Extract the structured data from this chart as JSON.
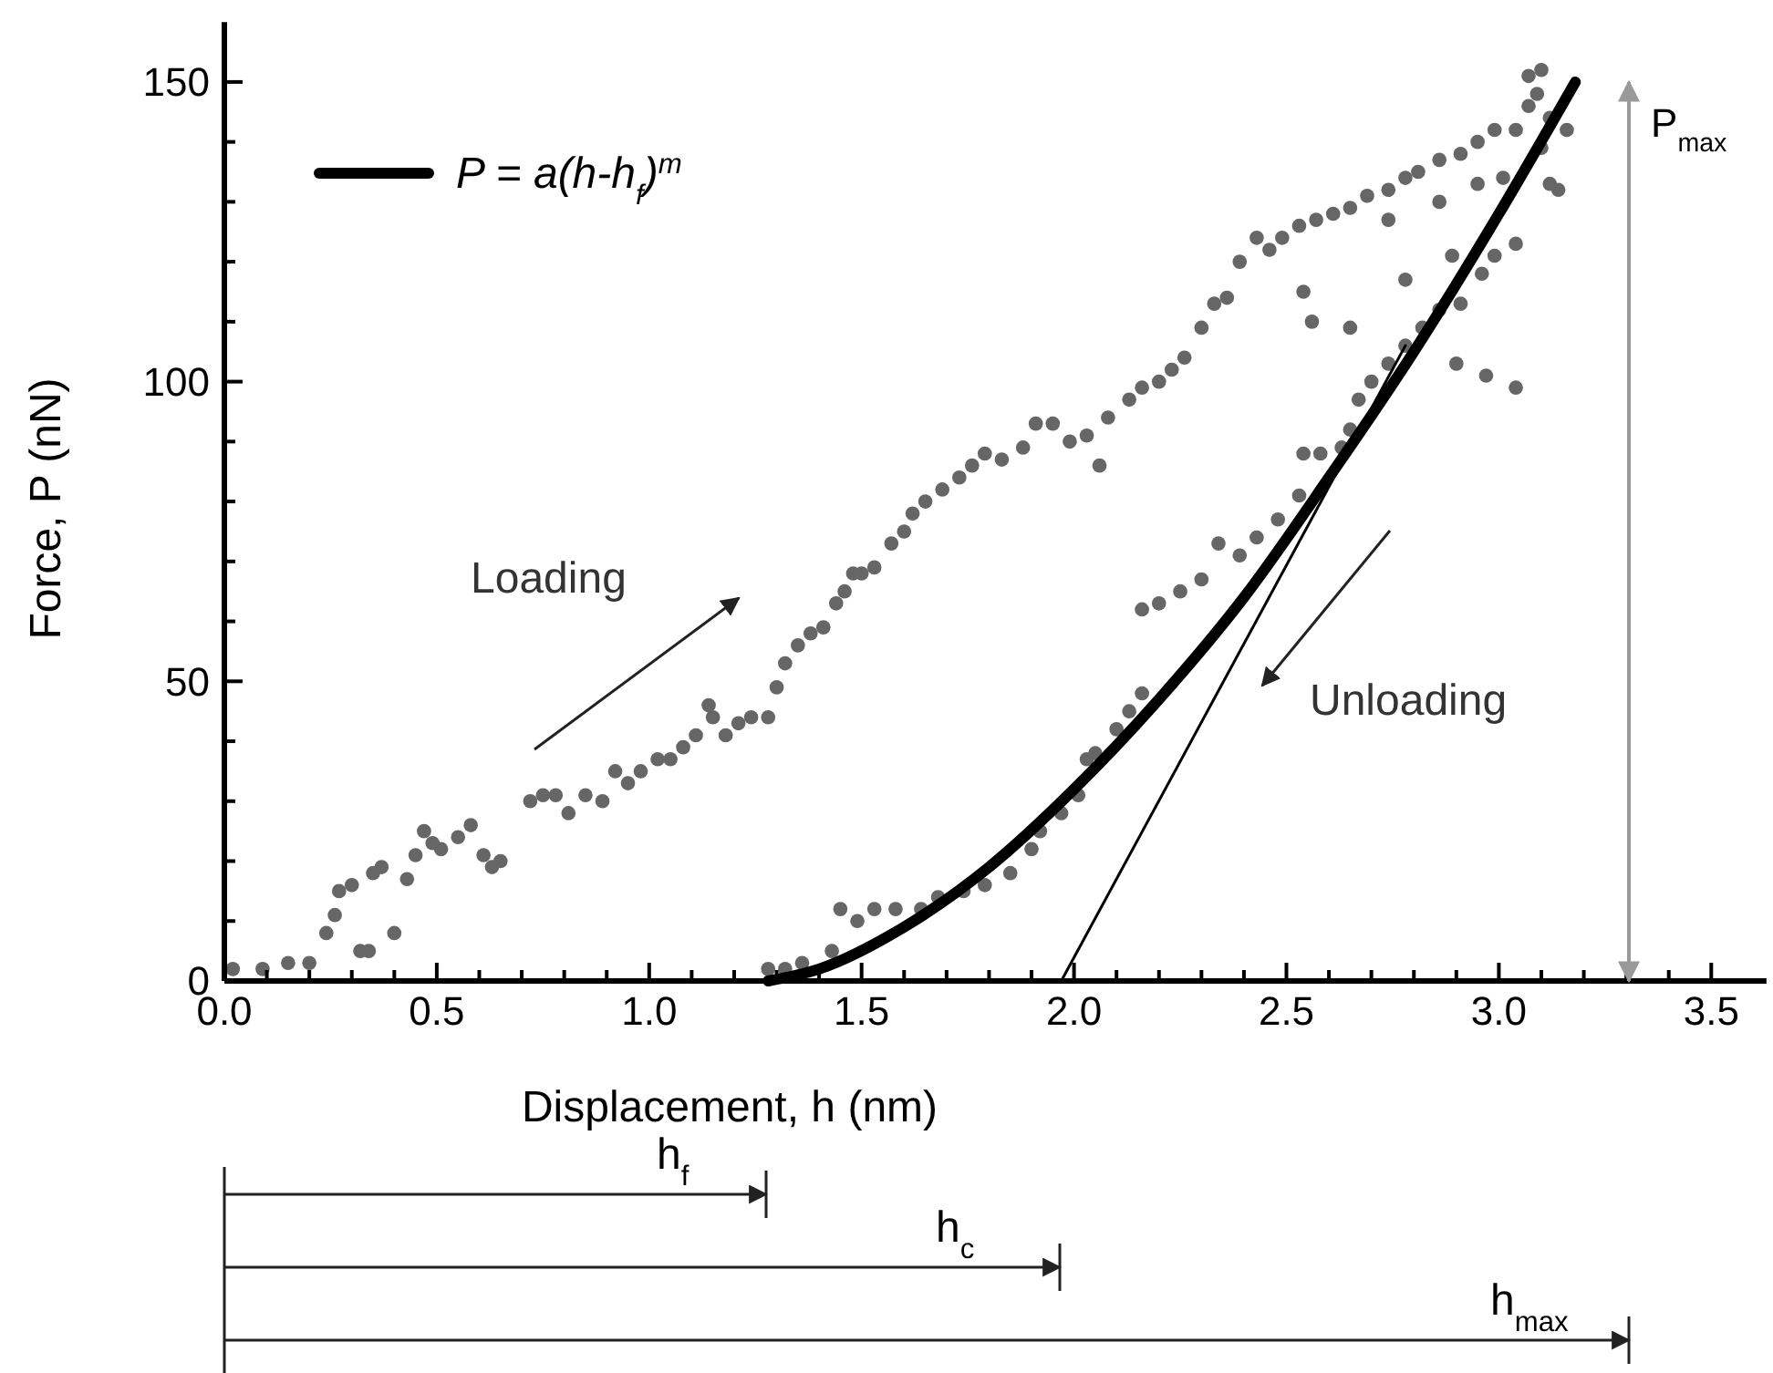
{
  "chart_data": {
    "type": "scatter",
    "xlabel": "Displacement, h (nm)",
    "ylabel": "Force, P (nN)",
    "xlim": [
      0,
      3.63
    ],
    "ylim": [
      0,
      160
    ],
    "xticks": [
      {
        "value": 0,
        "label": "0.0"
      },
      {
        "value": 0.1,
        "label": null
      },
      {
        "value": 0.2,
        "label": null
      },
      {
        "value": 0.3,
        "label": null
      },
      {
        "value": 0.4,
        "label": null
      },
      {
        "value": 0.5,
        "label": "0.5"
      },
      {
        "value": 0.6,
        "label": null
      },
      {
        "value": 0.7,
        "label": null
      },
      {
        "value": 0.8,
        "label": null
      },
      {
        "value": 0.9,
        "label": null
      },
      {
        "value": 1,
        "label": "1.0"
      },
      {
        "value": 1.1,
        "label": null
      },
      {
        "value": 1.2,
        "label": null
      },
      {
        "value": 1.3,
        "label": null
      },
      {
        "value": 1.4,
        "label": null
      },
      {
        "value": 1.5,
        "label": "1.5"
      },
      {
        "value": 1.6,
        "label": null
      },
      {
        "value": 1.7,
        "label": null
      },
      {
        "value": 1.8,
        "label": null
      },
      {
        "value": 1.9,
        "label": null
      },
      {
        "value": 2,
        "label": "2.0"
      },
      {
        "value": 2.1,
        "label": null
      },
      {
        "value": 2.2,
        "label": null
      },
      {
        "value": 2.3,
        "label": null
      },
      {
        "value": 2.4,
        "label": null
      },
      {
        "value": 2.5,
        "label": "2.5"
      },
      {
        "value": 2.6,
        "label": null
      },
      {
        "value": 2.7,
        "label": null
      },
      {
        "value": 2.8,
        "label": null
      },
      {
        "value": 2.9,
        "label": null
      },
      {
        "value": 3,
        "label": "3.0"
      },
      {
        "value": 3.1,
        "label": null
      },
      {
        "value": 3.2,
        "label": null
      },
      {
        "value": 3.3,
        "label": null
      },
      {
        "value": 3.4,
        "label": null
      },
      {
        "value": 3.5,
        "label": "3.5"
      }
    ],
    "yticks": [
      0,
      {
        "value": 10,
        "label": null
      },
      {
        "value": 20,
        "label": null
      },
      {
        "value": 30,
        "label": null
      },
      {
        "value": 40,
        "label": null
      },
      50,
      {
        "value": 60,
        "label": null
      },
      {
        "value": 70,
        "label": null
      },
      {
        "value": 80,
        "label": null
      },
      {
        "value": 90,
        "label": null
      },
      100,
      {
        "value": 110,
        "label": null
      },
      {
        "value": 120,
        "label": null
      },
      {
        "value": 130,
        "label": null
      },
      {
        "value": 140,
        "label": null
      },
      150
    ],
    "legend": "top left",
    "series": [
      {
        "marker": "circle",
        "color": "#666666",
        "x": [
          0.02,
          0.09,
          0.15,
          0.2,
          0.24,
          0.26,
          0.27,
          0.3,
          0.32,
          0.34,
          0.35,
          0.37,
          0.4,
          0.43,
          0.45,
          0.47,
          0.49,
          0.51,
          0.55,
          0.58,
          0.61,
          0.63,
          0.65,
          0.72,
          0.75,
          0.78,
          0.81,
          0.85,
          0.89,
          0.92,
          0.95,
          0.98,
          1.02,
          1.05,
          1.08,
          1.11,
          1.14,
          1.15,
          1.18,
          1.21,
          1.24,
          1.28,
          1.3,
          1.32,
          1.35,
          1.38,
          1.41,
          1.44,
          1.46,
          1.48,
          1.5,
          1.53,
          1.57,
          1.6,
          1.62,
          1.65,
          1.69,
          1.73,
          1.76,
          1.79,
          1.83,
          1.88,
          1.91,
          1.95,
          1.99,
          2.03,
          2.06,
          2.08,
          2.13,
          2.16,
          2.2,
          2.23,
          2.26,
          2.3,
          2.33,
          2.36,
          2.39,
          2.43,
          2.46,
          2.49,
          2.53,
          2.57,
          2.61,
          2.65,
          2.69,
          2.74,
          2.78,
          2.81,
          2.86,
          2.91,
          2.95,
          2.99,
          3.04,
          3.07,
          3.09,
          3.07,
          3.1
        ],
        "values": [
          2,
          2,
          3,
          3,
          8,
          11,
          15,
          16,
          5,
          5,
          18,
          19,
          8,
          17,
          21,
          25,
          23,
          22,
          24,
          26,
          21,
          19,
          20,
          30,
          31,
          31,
          28,
          31,
          30,
          35,
          33,
          35,
          37,
          37,
          39,
          41,
          46,
          44,
          41,
          43,
          44,
          44,
          49,
          53,
          56,
          58,
          59,
          63,
          65,
          68,
          68,
          69,
          73,
          75,
          78,
          80,
          82,
          84,
          86,
          88,
          87,
          89,
          93,
          93,
          90,
          91,
          86,
          94,
          97,
          99,
          100,
          102,
          104,
          109,
          113,
          114,
          120,
          124,
          122,
          124,
          126,
          127,
          128,
          129,
          131,
          132,
          134,
          135,
          137,
          138,
          140,
          142,
          142,
          146,
          148,
          151,
          152
        ]
      },
      {
        "marker": "circle",
        "color": "#666666",
        "x": [
          1.28,
          1.32,
          1.36,
          1.43,
          1.45,
          1.49,
          1.53,
          1.58,
          1.64,
          1.68,
          1.74,
          1.79,
          1.85,
          1.9,
          1.92,
          1.97,
          2.01,
          2.03,
          2.05,
          2.1,
          2.13,
          2.16,
          2.16,
          2.2,
          2.25,
          2.3,
          2.34,
          2.39,
          2.43,
          2.48,
          2.53,
          2.54,
          2.58,
          2.63,
          2.65,
          2.67,
          2.7,
          2.74,
          2.78,
          2.82,
          2.86,
          2.91,
          2.96,
          2.89,
          2.99,
          3.04,
          2.78,
          2.56,
          2.65,
          2.54,
          2.74,
          2.86,
          3.12,
          3.14,
          3.1,
          3.12,
          3.16,
          3.01,
          2.95,
          2.97,
          3.04,
          2.9
        ],
        "values": [
          2,
          2,
          3,
          5,
          12,
          10,
          12,
          12,
          12,
          14,
          15,
          16,
          18,
          22,
          25,
          28,
          31,
          37,
          38,
          42,
          45,
          48,
          62,
          63,
          65,
          67,
          73,
          71,
          74,
          77,
          81,
          88,
          88,
          89,
          92,
          97,
          100,
          103,
          106,
          109,
          112,
          113,
          118,
          121,
          121,
          123,
          117,
          110,
          109,
          115,
          127,
          130,
          133,
          132,
          139,
          144,
          142,
          134,
          133,
          101,
          99,
          103
        ]
      },
      {
        "type": "line",
        "marker": "none",
        "color": "#000000",
        "x": [
          1.97,
          2.78
        ],
        "values": [
          0,
          106
        ]
      },
      {
        "type": "line",
        "marker": "none",
        "name": "P = a(h-h$_{f}$)$^{m}$",
        "color": "#000000",
        "x": [
          1.28,
          1.4,
          1.6,
          1.8,
          2,
          2.2,
          2.4,
          2.6,
          2.8,
          3,
          3.18
        ],
        "values": [
          0,
          2,
          9,
          19,
          32,
          47,
          64,
          84,
          105,
          128,
          150
        ]
      }
    ],
    "annotations": [
      "Loading",
      "Unloading",
      "P$_{max}$",
      "h$_{f}$",
      "h$_{c}$",
      "h$_{max}$"
    ]
  }
}
